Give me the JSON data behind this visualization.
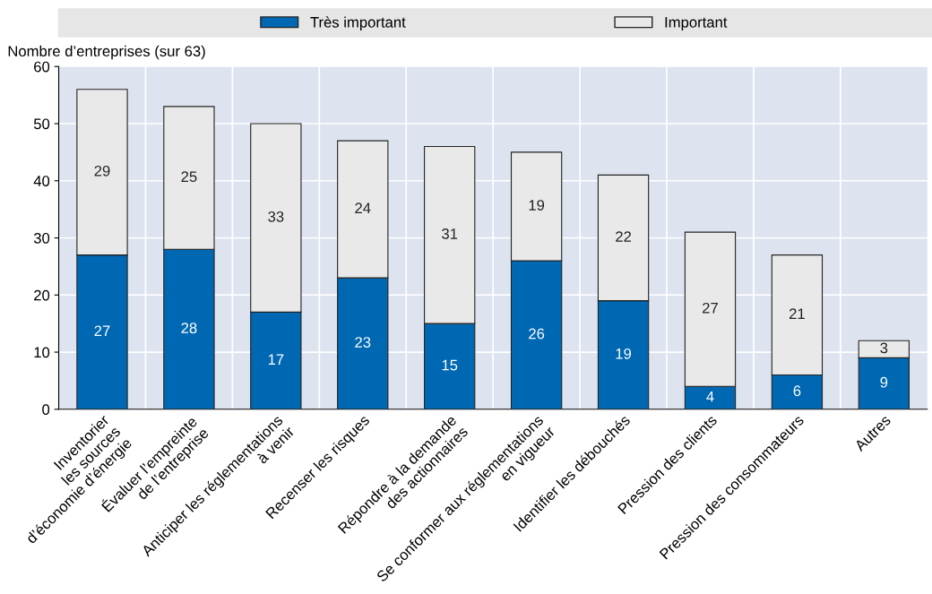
{
  "chart_data": {
    "type": "bar",
    "stacked": true,
    "ylabel": "Nombre d’entreprises (sur 63)",
    "categories": [
      "Inventorier\nles sources\nd’économie d’énergie",
      "Évaluer l’empreinte\nde l’entreprise",
      "Anticiper les réglementations\nà venir",
      "Recenser les risques",
      "Répondre à la demande\ndes actionnaires",
      "Se conformer aux réglementations\nen vigueur",
      "Identifier les débouchés",
      "Pression des clients",
      "Pression des consommateurs",
      "Autres"
    ],
    "series": [
      {
        "name": "Très important",
        "color": "#0068b3",
        "values": [
          27,
          28,
          17,
          23,
          15,
          26,
          19,
          4,
          6,
          9
        ]
      },
      {
        "name": "Important",
        "color": "#e9e9e9",
        "values": [
          29,
          25,
          33,
          24,
          31,
          19,
          22,
          27,
          21,
          3
        ]
      }
    ],
    "ylim": [
      0,
      60
    ],
    "yticks": [
      0,
      10,
      20,
      30,
      40,
      50,
      60
    ],
    "grid": true,
    "legend": "top",
    "data_labels": true
  }
}
